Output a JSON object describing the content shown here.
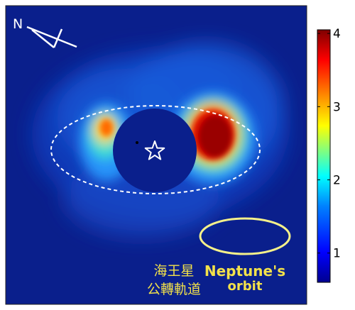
{
  "image": {
    "compass_label": "N",
    "label_chinese_line1": "海王星",
    "label_chinese_line2": "公轉軌道",
    "label_english_line1": "Neptune's",
    "label_english_line2": "orbit",
    "background_color": "#0a1f8c",
    "dashed_ellipse_color": "#ffffff",
    "orbit_ellipse_color": "#f5f08a",
    "label_color": "#f2e14a",
    "star_marker": "star-icon"
  },
  "colorbar": {
    "ticks": [
      "1",
      "2",
      "3",
      "4"
    ],
    "min": 0.6,
    "max": 4.05,
    "colormap": [
      "#00008f",
      "#0000ff",
      "#0080ff",
      "#00ffff",
      "#80ff80",
      "#ffff00",
      "#ff8000",
      "#ff0000",
      "#800000"
    ]
  }
}
